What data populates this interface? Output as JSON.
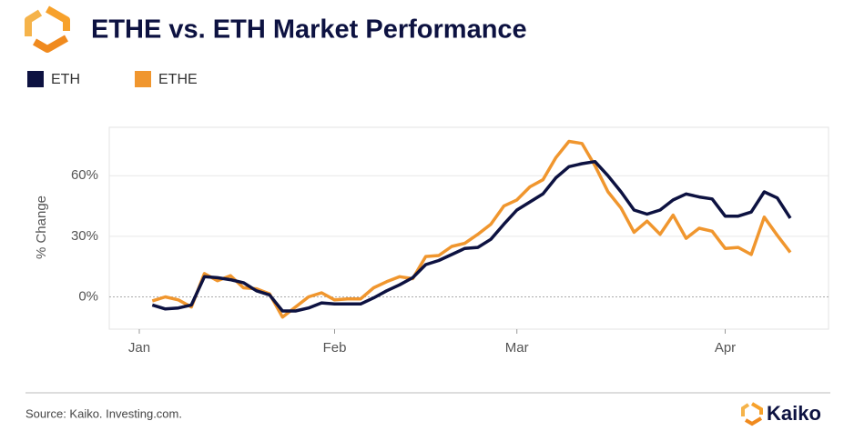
{
  "chart_data": {
    "type": "line",
    "title": "ETHE vs. ETH Market Performance",
    "y_label": "% Change",
    "source": "Source: Kaiko. Investing.com.",
    "categories": [
      "Jan",
      null,
      null,
      null,
      null,
      null,
      null,
      null,
      null,
      null,
      null,
      null,
      null,
      null,
      null,
      "Feb",
      null,
      null,
      null,
      null,
      null,
      null,
      null,
      null,
      null,
      null,
      null,
      null,
      null,
      "Mar",
      null,
      null,
      null,
      null,
      null,
      null,
      null,
      null,
      null,
      null,
      null,
      null,
      null,
      null,
      null,
      "Apr",
      null,
      null,
      null,
      null,
      null
    ],
    "series": [
      {
        "name": "ETH",
        "color": "#0d1241",
        "values": [
          null,
          -4,
          -6,
          -5.5,
          -4,
          10,
          9.5,
          8.5,
          7,
          3,
          1,
          -7,
          -7,
          -5.5,
          -3,
          -3.5,
          -3.5,
          -3.5,
          -0.5,
          3,
          6,
          9.5,
          16,
          18,
          21,
          24,
          24.5,
          28.5,
          36,
          43,
          47,
          51,
          59,
          64.5,
          66,
          67,
          60,
          52,
          43,
          41,
          43,
          48,
          51,
          49.5,
          48.5,
          40,
          40,
          42,
          52,
          49,
          39
        ]
      },
      {
        "name": "ETHE",
        "color": "#f0962e",
        "values": [
          null,
          -2,
          0,
          -1.5,
          -5,
          11.5,
          8,
          10.5,
          4.5,
          4,
          1.5,
          -10,
          -5,
          0,
          2,
          -1.5,
          -1,
          -1,
          4.5,
          7.5,
          10,
          9,
          20,
          20.5,
          25,
          26.5,
          31,
          36,
          45,
          48,
          54.5,
          58,
          69,
          77,
          76,
          65,
          52,
          44,
          32,
          37.5,
          31,
          40.5,
          29,
          34,
          32.5,
          24,
          24.5,
          21,
          39.5,
          30.5,
          22
        ]
      }
    ],
    "ylim": [
      -16,
      84
    ],
    "yticks": [
      {
        "value": 0,
        "label": "0%"
      },
      {
        "value": 30,
        "label": "30%"
      },
      {
        "value": 60,
        "label": "60%"
      }
    ],
    "grid": true
  },
  "brand": "Kaiko"
}
